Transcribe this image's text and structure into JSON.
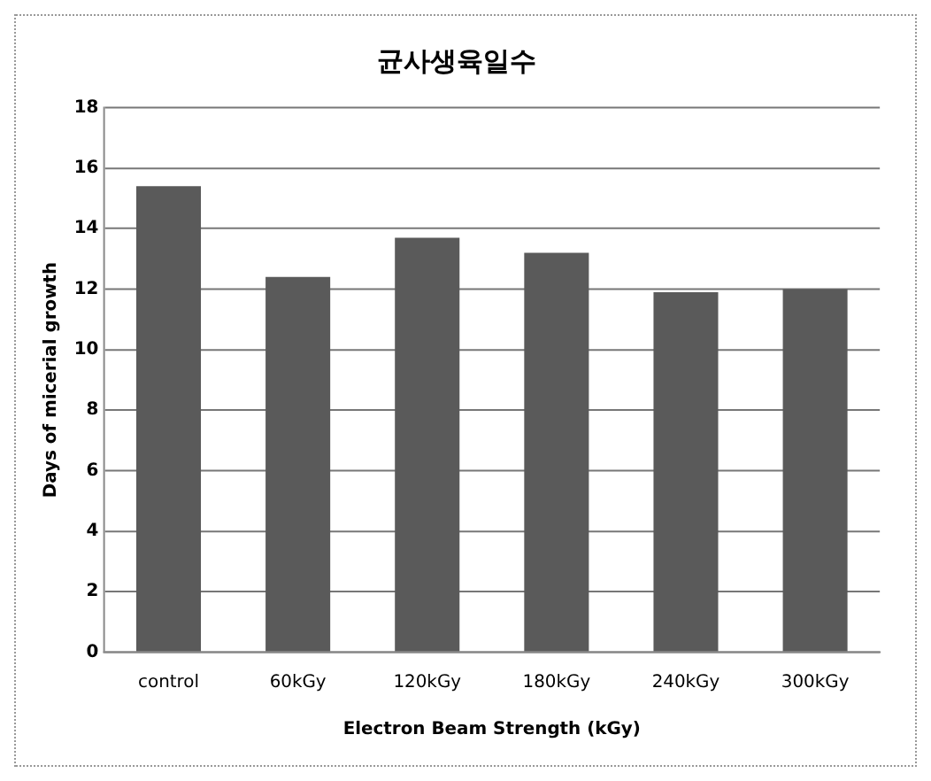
{
  "chart_data": {
    "type": "bar",
    "title": "균사생육일수",
    "xlabel": "Electron Beam Strength (kGy)",
    "ylabel": "Days of micerial growth",
    "categories": [
      "control",
      "60kGy",
      "120kGy",
      "180kGy",
      "240kGy",
      "300kGy"
    ],
    "values": [
      15.4,
      12.4,
      13.7,
      13.2,
      11.9,
      12.0
    ],
    "color": "#5a5a5a",
    "ylim": [
      0,
      18
    ],
    "yticks": [
      0,
      2,
      4,
      6,
      8,
      10,
      12,
      14,
      16,
      18
    ],
    "grid": "y",
    "legend": false
  }
}
